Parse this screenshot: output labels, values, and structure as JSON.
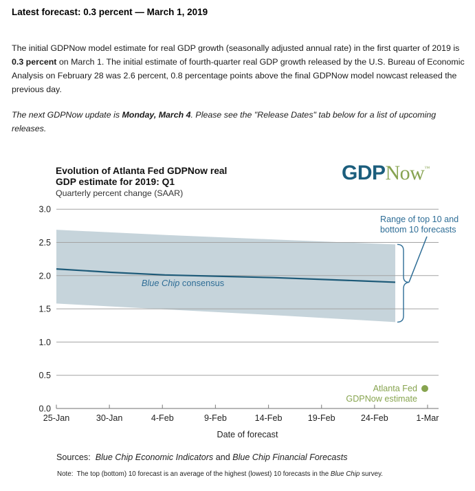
{
  "intro": {
    "heading": "Latest forecast: 0.3 percent — March 1, 2019",
    "p1_a": "The initial GDPNow model estimate for real GDP growth (seasonally adjusted annual rate) in the first quarter of 2019 is ",
    "p1_b": "0.3 percent",
    "p1_c": " on March 1. The initial estimate of fourth-quarter real GDP growth released by the U.S. Bureau of Economic Analysis on February 28 was 2.6 percent, 0.8 percentage points above the final GDPNow model nowcast released the previous day.",
    "p2_a": "The next GDPNow update is ",
    "p2_b": "Monday, March 4",
    "p2_c": ". Please see the \"Release Dates\" tab below for a list of upcoming releases."
  },
  "chart": {
    "title_line1": "Evolution of Atlanta Fed GDPNow real",
    "title_line2": "GDP estimate for 2019: Q1",
    "subtitle": "Quarterly percent change (SAAR)",
    "logo": {
      "part1": "GDP",
      "part2": "Now",
      "tm": "™",
      "color1": "#1c5e7d",
      "color2": "#87a351"
    }
  },
  "chart_data": {
    "type": "line",
    "title": "Evolution of Atlanta Fed GDPNow real GDP estimate for 2019: Q1",
    "subtitle": "Quarterly percent change (SAAR)",
    "xlabel": "Date of forecast",
    "ylim": [
      0.0,
      3.0
    ],
    "yticks": [
      "3.0",
      "2.5",
      "2.0",
      "1.5",
      "1.0",
      "0.5",
      "0.0"
    ],
    "xticks": [
      "25-Jan",
      "30-Jan",
      "4-Feb",
      "9-Feb",
      "14-Feb",
      "19-Feb",
      "24-Feb",
      "1-Mar"
    ],
    "grid": true,
    "legend_position": "annotations-on-chart",
    "colors": {
      "band": "#c6d4db",
      "consensus_line": "#1d5a78",
      "gridline": "#a3a3a3",
      "axis": "#8c8c8c",
      "annotation_blue": "#2e6d96",
      "estimate_green": "#87a44f"
    },
    "series": [
      {
        "name": "Range of top 10 and bottom 10 forecasts",
        "type": "band",
        "color": "#c6d4db",
        "x_frac": [
          0,
          0.33,
          0.66,
          1
        ],
        "x_end_frac": 0.913,
        "upper": [
          2.69,
          2.61,
          2.54,
          2.47
        ],
        "lower": [
          1.58,
          1.49,
          1.4,
          1.3
        ]
      },
      {
        "name": "Blue Chip consensus",
        "type": "line",
        "color": "#1d5a78",
        "x_frac": [
          0,
          0.16,
          0.32,
          0.48,
          0.64,
          0.8,
          0.9,
          1
        ],
        "values": [
          2.1,
          2.05,
          2.01,
          1.99,
          1.97,
          1.94,
          1.92,
          1.9
        ]
      },
      {
        "name": "Atlanta Fed GDPNow estimate",
        "type": "point",
        "color": "#87a44f",
        "x_tick": "1-Mar",
        "value": 0.3
      }
    ],
    "annotations": {
      "consensus_italic": "Blue Chip",
      "consensus_rest": " consensus",
      "range_line1": "Range of top 10 and",
      "range_line2": "bottom 10 forecasts",
      "estimate_line1": "Atlanta Fed",
      "estimate_line2": "GDPNow estimate"
    }
  },
  "footer": {
    "sources_label": "Sources:  ",
    "source1": "Blue Chip Economic Indicators",
    "joiner": " and ",
    "source2": "Blue Chip Financial Forecasts",
    "note_a": "Note:  The top (bottom) 10 forecast is an average of the highest (lowest) 10 forecasts in the ",
    "note_b": "Blue Chip",
    "note_c": " survey."
  }
}
